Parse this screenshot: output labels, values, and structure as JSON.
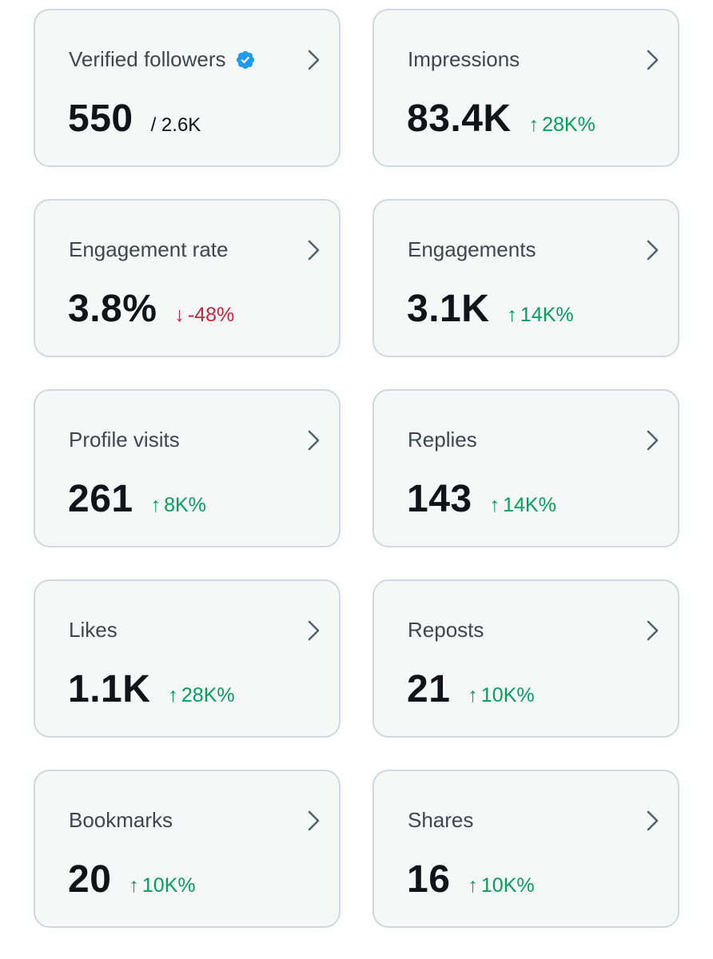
{
  "cards": [
    {
      "title": "Verified followers",
      "value": "550",
      "sub": "/ 2.6K",
      "verified_icon": "verified-badge-icon"
    },
    {
      "title": "Impressions",
      "value": "83.4K",
      "delta_arrow": "↑",
      "delta": "28K%",
      "direction": "up"
    },
    {
      "title": "Engagement rate",
      "value": "3.8%",
      "delta_arrow": "↓",
      "delta": "-48%",
      "direction": "down"
    },
    {
      "title": "Engagements",
      "value": "3.1K",
      "delta_arrow": "↑",
      "delta": "14K%",
      "direction": "up"
    },
    {
      "title": "Profile visits",
      "value": "261",
      "delta_arrow": "↑",
      "delta": "8K%",
      "direction": "up"
    },
    {
      "title": "Replies",
      "value": "143",
      "delta_arrow": "↑",
      "delta": "14K%",
      "direction": "up"
    },
    {
      "title": "Likes",
      "value": "1.1K",
      "delta_arrow": "↑",
      "delta": "28K%",
      "direction": "up"
    },
    {
      "title": "Reposts",
      "value": "21",
      "delta_arrow": "↑",
      "delta": "10K%",
      "direction": "up"
    },
    {
      "title": "Bookmarks",
      "value": "20",
      "delta_arrow": "↑",
      "delta": "10K%",
      "direction": "up"
    },
    {
      "title": "Shares",
      "value": "16",
      "delta_arrow": "↑",
      "delta": "10K%",
      "direction": "up"
    }
  ],
  "colors": {
    "up": "#00a15c",
    "down": "#d4203a",
    "verified": "#1d9bf0",
    "card_bg": "#f6f7f7",
    "card_border": "#cfd9de"
  },
  "icons": {
    "chevron": "chevron-right-icon",
    "verified": "verified-badge-icon"
  }
}
